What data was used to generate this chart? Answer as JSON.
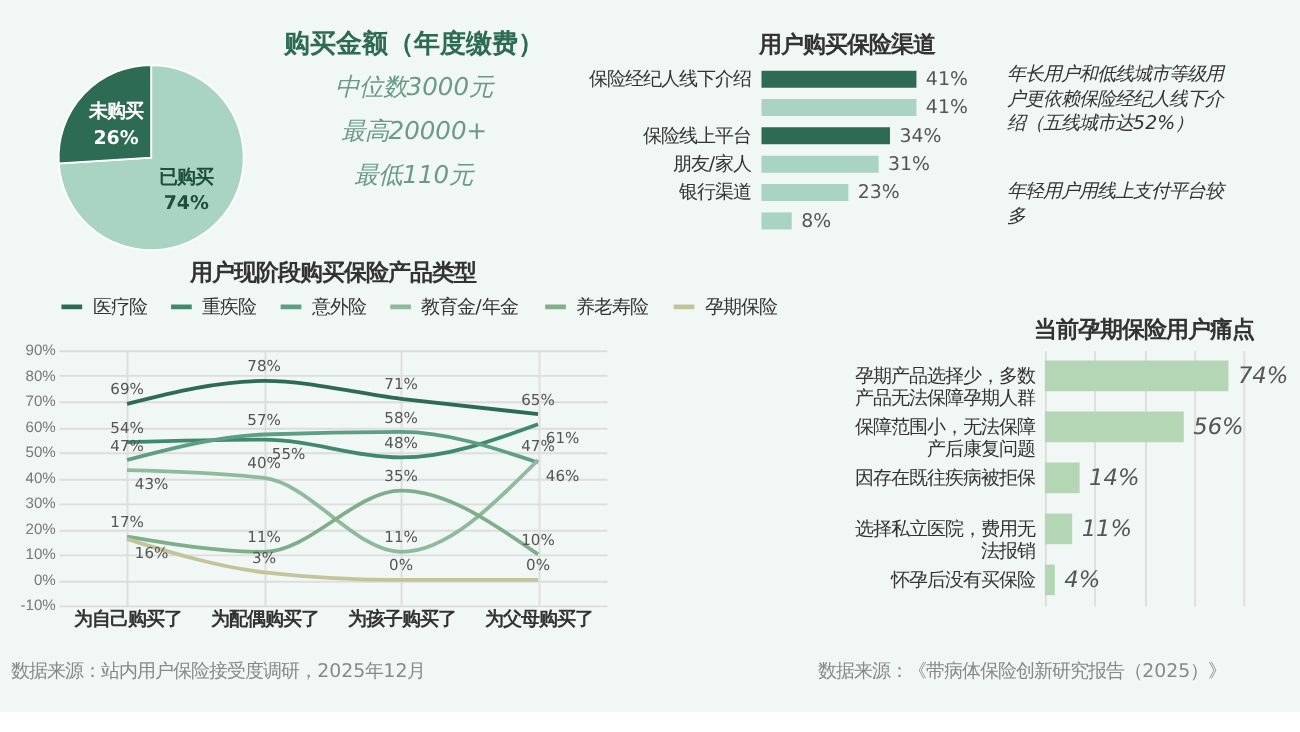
{
  "chart_data": [
    {
      "type": "pie",
      "categories": [
        "已购买",
        "未购买"
      ],
      "values": [
        74,
        26
      ],
      "colors": [
        "#a9d4c4",
        "#2e6b55"
      ],
      "value_labels": [
        "74%",
        "26%"
      ]
    },
    {
      "type": "other",
      "title": "购买金额（年度缴费）",
      "annotations": [
        "中位数3000元",
        "最高20000+",
        "最低110元"
      ]
    },
    {
      "type": "bar",
      "orientation": "horizontal",
      "title": "用户购买保险渠道",
      "categories": [
        "保险经纪人线下介绍",
        null,
        "保险线上平台",
        "朋友/家人",
        "银行渠道",
        null
      ],
      "values": [
        41,
        41,
        34,
        31,
        23,
        8
      ],
      "value_labels": [
        "41%",
        "41%",
        "34%",
        "31%",
        "23%",
        "8%"
      ],
      "colors": [
        "#2e6b55",
        "#a9d4c4",
        "#2e6b55",
        "#a9d4c4",
        "#a9d4c4",
        "#a9d4c4"
      ],
      "annotations": [
        "年长用户和低线城市等级用户更依赖保险经纪人线下介绍（五线城市达52%）",
        "年轻用户用线上支付平台较多"
      ]
    },
    {
      "type": "line",
      "title": "用户现阶段购买保险产品类型",
      "categories": [
        "为自己购买了",
        "为配偶购买了",
        "为孩子购买了",
        "为父母购买了"
      ],
      "ylim": [
        -10,
        90
      ],
      "yticks": [
        {
          "value": -10,
          "label": "-10%"
        },
        {
          "value": 0,
          "label": "0%"
        },
        {
          "value": 10,
          "label": "10%"
        },
        {
          "value": 20,
          "label": "20%"
        },
        {
          "value": 30,
          "label": "30%"
        },
        {
          "value": 40,
          "label": "40%"
        },
        {
          "value": 50,
          "label": "50%"
        },
        {
          "value": 60,
          "label": "60%"
        },
        {
          "value": 70,
          "label": "70%"
        },
        {
          "value": 80,
          "label": "80%"
        },
        {
          "value": 90,
          "label": "90%"
        }
      ],
      "grid": true,
      "legend": "top",
      "line_style": "solid",
      "series": [
        {
          "name": "医疗险",
          "color": "#2e6b55",
          "values": [
            69,
            78,
            71,
            65
          ],
          "value_labels": [
            "69%",
            "78%",
            "71%",
            "65%"
          ]
        },
        {
          "name": "重疾险",
          "color": "#3f8a6e",
          "values": [
            54,
            55,
            48,
            61
          ],
          "value_labels": [
            "54%",
            "55%",
            "48%",
            "61%"
          ]
        },
        {
          "name": "意外险",
          "color": "#5e9e85",
          "values": [
            47,
            57,
            58,
            46
          ],
          "value_labels": [
            "47%",
            "57%",
            "58%",
            "46%"
          ]
        },
        {
          "name": "教育金/年金",
          "color": "#8dbb9c",
          "values": [
            43,
            40,
            11,
            47
          ],
          "value_labels": [
            "43%",
            "40%",
            "11%",
            "47%"
          ]
        },
        {
          "name": "养老寿险",
          "color": "#7fae8a",
          "values": [
            17,
            11,
            35,
            10
          ],
          "value_labels": [
            "17%",
            "11%",
            "35%",
            "10%"
          ]
        },
        {
          "name": "孕期保险",
          "color": "#c4c49a",
          "values": [
            16,
            3,
            0,
            0
          ],
          "value_labels": [
            "16%",
            "3%",
            "0%",
            "0%"
          ]
        }
      ],
      "annotations": [
        "数据来源：站内用户保险接受度调研，2025年12月"
      ]
    },
    {
      "type": "bar",
      "orientation": "horizontal",
      "title": "当前孕期保险用户痛点",
      "categories": [
        "孕期产品选择少，多数产品无法保障孕期人群",
        "保障范围小，无法保障产后康复问题",
        "因存在既往疾病被拒保",
        "选择私立医院，费用无法报销",
        "怀孕后没有买保险"
      ],
      "values": [
        74,
        56,
        14,
        11,
        4
      ],
      "value_labels": [
        "74%",
        "56%",
        "14%",
        "11%",
        "4%"
      ],
      "color": "#b5d6b5",
      "xlim": [
        0,
        80
      ],
      "xticks": [
        {
          "value": 0,
          "label": null
        },
        {
          "value": 20,
          "label": null
        },
        {
          "value": 40,
          "label": null
        },
        {
          "value": 60,
          "label": null
        },
        {
          "value": 80,
          "label": null
        }
      ],
      "grid": "x",
      "tick_labels": "y",
      "annotations": [
        "数据来源：《带病体保险创新研究报告（2025）》"
      ]
    }
  ]
}
